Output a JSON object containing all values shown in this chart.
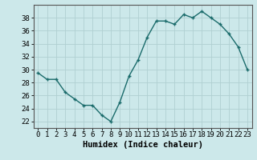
{
  "x": [
    0,
    1,
    2,
    3,
    4,
    5,
    6,
    7,
    8,
    9,
    10,
    11,
    12,
    13,
    14,
    15,
    16,
    17,
    18,
    19,
    20,
    21,
    22,
    23
  ],
  "y": [
    29.5,
    28.5,
    28.5,
    26.5,
    25.5,
    24.5,
    24.5,
    23.0,
    22,
    25,
    29,
    31.5,
    35,
    37.5,
    37.5,
    37,
    38.5,
    38,
    39,
    38,
    37,
    35.5,
    33.5,
    30
  ],
  "line_color": "#1a6b6b",
  "marker": "+",
  "bg_color": "#cce8ea",
  "grid_color": "#b0d0d2",
  "axis_color": "#555555",
  "tick_color": "#000000",
  "xlabel": "Humidex (Indice chaleur)",
  "ylim": [
    21,
    40
  ],
  "xlim": [
    -0.5,
    23.5
  ],
  "yticks": [
    22,
    24,
    26,
    28,
    30,
    32,
    34,
    36,
    38
  ],
  "xticks": [
    0,
    1,
    2,
    3,
    4,
    5,
    6,
    7,
    8,
    9,
    10,
    11,
    12,
    13,
    14,
    15,
    16,
    17,
    18,
    19,
    20,
    21,
    22,
    23
  ],
  "xlabel_fontsize": 7.5,
  "tick_fontsize": 6.5,
  "line_width": 1.0,
  "marker_size": 3.5
}
